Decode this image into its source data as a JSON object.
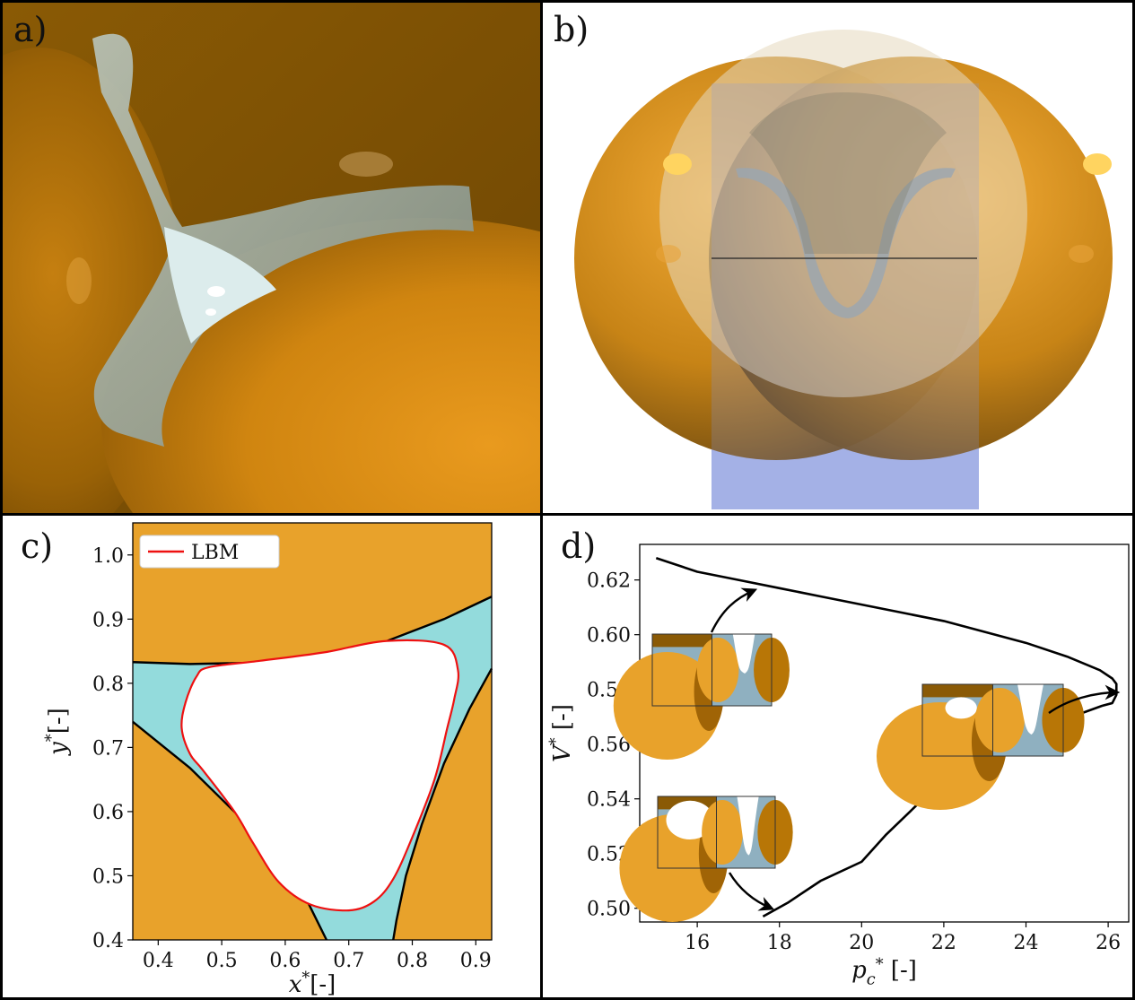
{
  "panels": {
    "a": {
      "label": "a)"
    },
    "b": {
      "label": "b)"
    },
    "c": {
      "label": "c)"
    },
    "d": {
      "label": "d)"
    }
  },
  "colors": {
    "grain": "#e8a22b",
    "grain_dark": "#8a5a06",
    "fluid": "#93dbdc",
    "lbm": "#ee1111",
    "curve": "#000000",
    "gas_blue": "#8f9fe0"
  },
  "chart_data": [
    {
      "type": "area",
      "panel": "c",
      "xlabel": "x*[-]",
      "ylabel": "y*[-]",
      "xlim": [
        0.36,
        0.925
      ],
      "ylim": [
        0.4,
        1.05
      ],
      "xticks": [
        "0.4",
        "0.5",
        "0.6",
        "0.7",
        "0.8",
        "0.9"
      ],
      "yticks": [
        "0.4",
        "0.5",
        "0.6",
        "0.7",
        "0.8",
        "0.9",
        "1.0"
      ],
      "legend": {
        "position": "top-left",
        "entries": [
          "LBM"
        ]
      },
      "series": [
        {
          "name": "LBM",
          "kind": "interface",
          "x": [
            0.48,
            0.56,
            0.66,
            0.76,
            0.85,
            0.872,
            0.866,
            0.855,
            0.835,
            0.8,
            0.77,
            0.74,
            0.7,
            0.64,
            0.59,
            0.55,
            0.52,
            0.47,
            0.45,
            0.437,
            0.443,
            0.46,
            0.48
          ],
          "y": [
            0.825,
            0.835,
            0.848,
            0.866,
            0.86,
            0.82,
            0.775,
            0.73,
            0.65,
            0.56,
            0.495,
            0.46,
            0.446,
            0.455,
            0.49,
            0.55,
            0.6,
            0.665,
            0.69,
            0.73,
            0.77,
            0.81,
            0.825
          ]
        },
        {
          "kind": "grain-top",
          "x": [
            0.36,
            0.45,
            0.55,
            0.65,
            0.75,
            0.85,
            0.925
          ],
          "y": [
            0.833,
            0.83,
            0.832,
            0.84,
            0.862,
            0.9,
            0.935
          ]
        },
        {
          "kind": "grain-left",
          "x": [
            0.36,
            0.45,
            0.53,
            0.58,
            0.62,
            0.65,
            0.665
          ],
          "y": [
            0.74,
            0.668,
            0.59,
            0.535,
            0.49,
            0.43,
            0.4
          ]
        },
        {
          "kind": "grain-right",
          "x": [
            0.925,
            0.89,
            0.85,
            0.815,
            0.79,
            0.775,
            0.77
          ],
          "y": [
            0.823,
            0.76,
            0.675,
            0.58,
            0.5,
            0.43,
            0.4
          ]
        }
      ]
    },
    {
      "type": "line",
      "panel": "d",
      "xlabel": "p_c* [-]",
      "ylabel": "V* [-]",
      "xlim": [
        14.6,
        26.5
      ],
      "ylim": [
        0.495,
        0.633
      ],
      "xticks": [
        16,
        18,
        20,
        22,
        24,
        26
      ],
      "yticks": [
        "0.50",
        "0.52",
        "0.54",
        "0.56",
        "0.58",
        "0.60",
        "0.62"
      ],
      "series": [
        {
          "x": [
            17.6,
            18.2,
            19.0,
            20.0,
            20.6,
            21.5,
            22.5,
            23.5,
            24.5,
            25.3,
            25.85,
            26.1,
            26.2,
            26.2,
            26.1,
            25.8,
            25.0,
            24.0,
            23.0,
            22.0,
            21.0,
            20.0,
            19.0,
            18.0,
            17.0,
            16.0,
            15.0
          ],
          "y": [
            0.497,
            0.502,
            0.51,
            0.517,
            0.527,
            0.54,
            0.551,
            0.559,
            0.566,
            0.571,
            0.574,
            0.575,
            0.578,
            0.582,
            0.584,
            0.587,
            0.592,
            0.597,
            0.601,
            0.605,
            0.608,
            0.611,
            0.614,
            0.617,
            0.62,
            0.623,
            0.628
          ]
        }
      ]
    }
  ]
}
